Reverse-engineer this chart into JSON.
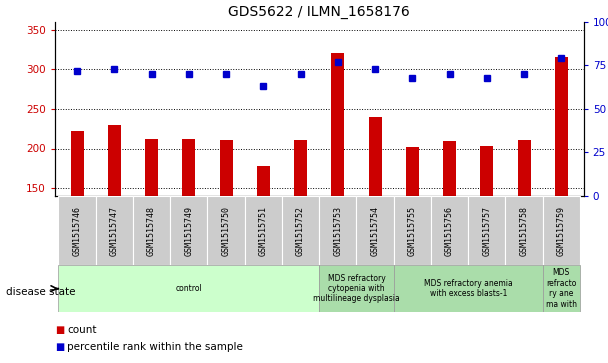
{
  "title": "GDS5622 / ILMN_1658176",
  "samples": [
    "GSM1515746",
    "GSM1515747",
    "GSM1515748",
    "GSM1515749",
    "GSM1515750",
    "GSM1515751",
    "GSM1515752",
    "GSM1515753",
    "GSM1515754",
    "GSM1515755",
    "GSM1515756",
    "GSM1515757",
    "GSM1515758",
    "GSM1515759"
  ],
  "counts": [
    222,
    230,
    212,
    212,
    211,
    178,
    211,
    320,
    240,
    202,
    210,
    203,
    211,
    316
  ],
  "percentile_ranks": [
    72,
    73,
    70,
    70,
    70,
    63,
    70,
    77,
    73,
    68,
    70,
    68,
    70,
    79
  ],
  "bar_color": "#cc0000",
  "dot_color": "#0000cc",
  "ylim_left": [
    140,
    360
  ],
  "ylim_right": [
    0,
    100
  ],
  "yticks_left": [
    150,
    200,
    250,
    300,
    350
  ],
  "yticks_right": [
    0,
    25,
    50,
    75,
    100
  ],
  "disease_groups": [
    {
      "label": "control",
      "start": 0,
      "end": 7,
      "color": "#ccffcc"
    },
    {
      "label": "MDS refractory\ncytopenia with\nmultilineage dysplasia",
      "start": 7,
      "end": 9,
      "color": "#aaddaa"
    },
    {
      "label": "MDS refractory anemia\nwith excess blasts-1",
      "start": 9,
      "end": 13,
      "color": "#aaddaa"
    },
    {
      "label": "MDS\nrefracto\nry ane\nma with",
      "start": 13,
      "end": 14,
      "color": "#aaddaa"
    }
  ],
  "tick_label_bg": "#cccccc",
  "bar_width": 0.35
}
